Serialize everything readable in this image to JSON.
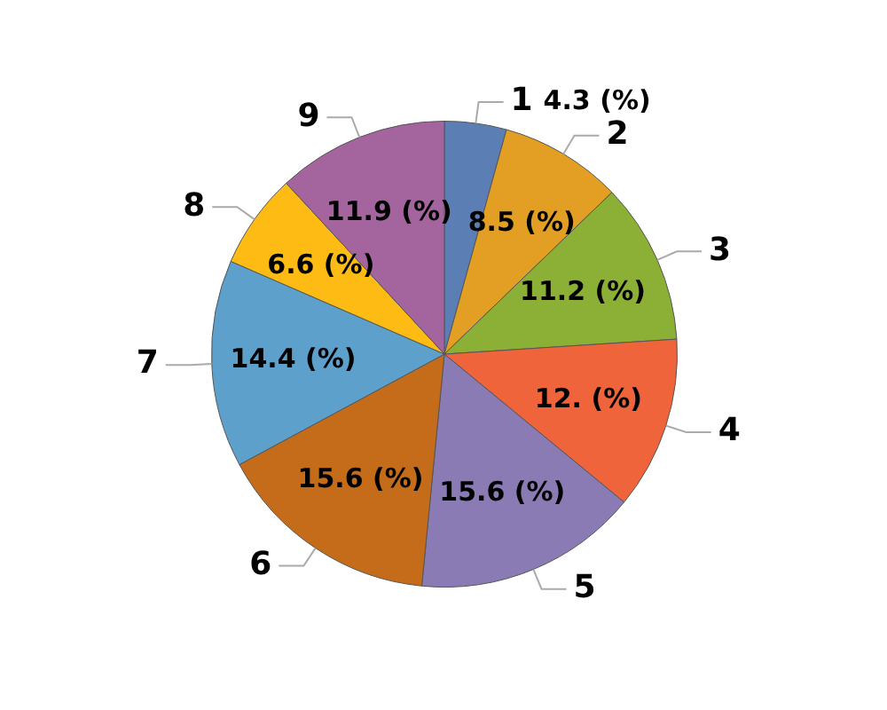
{
  "chart_data": {
    "type": "pie",
    "categories": [
      "1",
      "2",
      "3",
      "4",
      "5",
      "6",
      "7",
      "8",
      "9"
    ],
    "values": [
      4.3,
      8.5,
      11.2,
      12,
      15.6,
      15.6,
      14.4,
      6.6,
      11.9
    ],
    "value_labels": [
      "4.3 (%)",
      "8.5 (%)",
      "11.2 (%)",
      "12. (%)",
      "15.6 (%)",
      "15.6 (%)",
      "14.4 (%)",
      "6.6 (%)",
      "11.9 (%)"
    ],
    "colors": [
      "#5b7fb5",
      "#e39e24",
      "#8cb035",
      "#ef643a",
      "#8a7bb5",
      "#c46c1a",
      "#5da0cb",
      "#fdbb13",
      "#a4659f"
    ],
    "legend": false
  }
}
